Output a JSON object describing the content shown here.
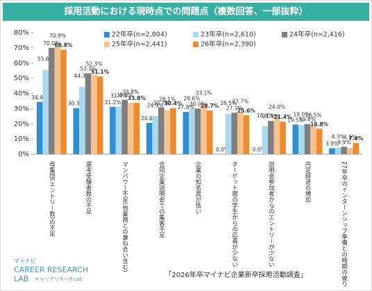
{
  "chart_data": {
    "type": "bar",
    "title": "採用活動における現時点での問題点（複数回答、一部抜粋）",
    "categories": [
      "母集団(エントリー数)の不足",
      "選考受験者数の不足",
      "マンパワー不足(他業務との兼ね合い含む)",
      "合同企業説明会での集客不足",
      "企業の知名度が低い",
      "ターゲット層の学生からの応募が少ない",
      "説明会参加者からのエントリーが少ない",
      "内定辞退の増加",
      "27年卒のインターンシップ準備との時期の被り"
    ],
    "series": [
      {
        "name": "22年卒(n=2,804)",
        "color": "#2e8fd6",
        "values": [
          34.4,
          30.3,
          31.2,
          20.6,
          27.8,
          0.0,
          0.0,
          19.5,
          3.9
        ],
        "value_labels": [
          "34.4%",
          "30.3%",
          "31.2%",
          "20.6%",
          "27.8%",
          "0.0%",
          "0.0%",
          "19.5%",
          "3.9%"
        ]
      },
      {
        "name": "23年卒(n=2,610)",
        "color": "#a9d9ef",
        "values": [
          55.6,
          44.3,
          31.4,
          24.9,
          29.6,
          26.5,
          18.4,
          19.0,
          4.3
        ],
        "value_labels": [
          "55.6%",
          "44.3%",
          "31.4%",
          "24.9%",
          "29.6%",
          "26.5%",
          "18.4%",
          "19.0%",
          "4.3%"
        ]
      },
      {
        "name": "24年卒(n=2,416)",
        "color": "#7f7f7f",
        "values": [
          70.0,
          53.3,
          35.8,
          30.7,
          30.0,
          27.3,
          21.9,
          19.8,
          4.9
        ],
        "value_labels": [
          "70.0%",
          "53.3%",
          "35.8%",
          "30.7%",
          "30.0%",
          "27.3%",
          "21.9%",
          "19.8%",
          "4.9%"
        ]
      },
      {
        "name": "25年卒(n=2,441)",
        "color": "#f6c28e",
        "values": [
          70.9,
          52.3,
          33.8,
          29.1,
          33.1,
          27.7,
          24.0,
          18.5,
          4.1
        ],
        "value_labels": [
          "70.9%",
          "52.3%",
          "33.8%",
          "29.1%",
          "33.1%",
          "27.7%",
          "24.0%",
          "18.5%",
          "4.1%"
        ]
      },
      {
        "name": "26年卒(n=2,390)",
        "color": "#ee8a2f",
        "values": [
          68.8,
          51.1,
          33.8,
          30.4,
          28.7,
          25.6,
          21.4,
          16.8,
          7.4
        ],
        "value_labels": [
          "68.8%",
          "51.1%",
          "33.8%",
          "30.4%",
          "28.7%",
          "25.6%",
          "21.4%",
          "16.8%",
          "7.4%"
        ]
      }
    ],
    "ylim": [
      0,
      80
    ],
    "yticks": [
      {
        "value": 0,
        "label": "0%"
      },
      {
        "value": 10,
        "label": "10%"
      },
      {
        "value": 20,
        "label": "20%"
      },
      {
        "value": 30,
        "label": "30%"
      },
      {
        "value": 40,
        "label": "40%"
      },
      {
        "value": 50,
        "label": "50%"
      },
      {
        "value": 60,
        "label": "60%"
      },
      {
        "value": 70,
        "label": "70%"
      },
      {
        "value": 80,
        "label": "80%"
      }
    ],
    "source": "「2026年卒マイナビ企業新卒採用活動調査」",
    "logo": {
      "brand": "マイナビ",
      "line1": "CAREER RESEARCH",
      "line2": "LAB",
      "sub": "キャリアリサーチLab"
    }
  }
}
